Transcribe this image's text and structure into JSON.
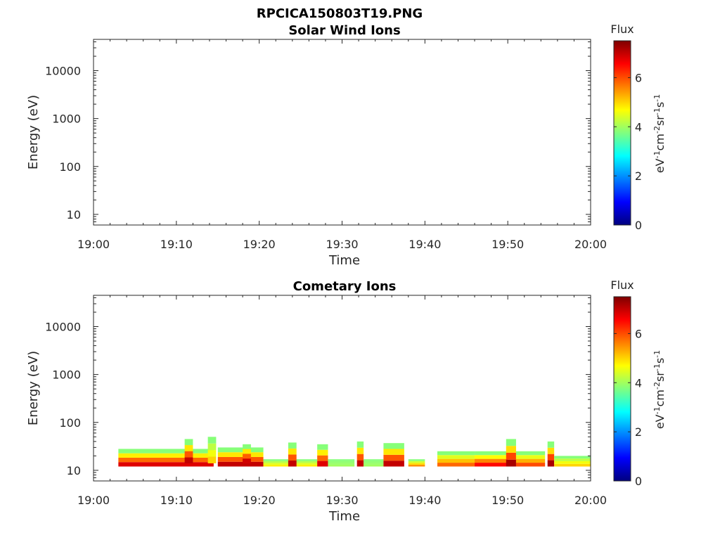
{
  "figure_title": "RPCICA150803T19.PNG",
  "chart_data": [
    {
      "type": "heatmap",
      "title": "Solar Wind Ions",
      "xlabel": "Time",
      "ylabel": "Energy (eV)",
      "y_scale": "log",
      "ylim": [
        6,
        45000
      ],
      "xlim": [
        "19:00",
        "20:00"
      ],
      "x_ticks": [
        "19:00",
        "19:10",
        "19:20",
        "19:30",
        "19:40",
        "19:50",
        "20:00"
      ],
      "y_ticks": [
        {
          "value": 10,
          "label": "10"
        },
        {
          "value": 100,
          "label": "100"
        },
        {
          "value": 1000,
          "label": "1000"
        },
        {
          "value": 10000,
          "label": "10000"
        }
      ],
      "colorbar": {
        "label": "Flux",
        "units": "eV-1cm-2sr-1s-1",
        "range": [
          0,
          7.5
        ],
        "ticks": [
          "0",
          "2",
          "4",
          "6"
        ],
        "colormap": "jet"
      },
      "grid": false,
      "bands": []
    },
    {
      "type": "heatmap",
      "title": "Cometary Ions",
      "xlabel": "Time",
      "ylabel": "Energy (eV)",
      "y_scale": "log",
      "ylim": [
        6,
        45000
      ],
      "xlim": [
        "19:00",
        "20:00"
      ],
      "x_ticks": [
        "19:00",
        "19:10",
        "19:20",
        "19:30",
        "19:40",
        "19:50",
        "20:00"
      ],
      "y_ticks": [
        {
          "value": 10,
          "label": "10"
        },
        {
          "value": 100,
          "label": "100"
        },
        {
          "value": 1000,
          "label": "1000"
        },
        {
          "value": 10000,
          "label": "10000"
        }
      ],
      "colorbar": {
        "label": "Flux",
        "units": "eV-1cm-2sr-1s-1",
        "range": [
          0,
          7.5
        ],
        "ticks": [
          "0",
          "2",
          "4",
          "6"
        ],
        "colormap": "jet"
      },
      "grid": false,
      "bands": [
        {
          "t_start": 3.0,
          "t_end": 14.5,
          "e_low": 12,
          "e_high": 28,
          "peak_flux": 6.8
        },
        {
          "t_start": 11.0,
          "t_end": 12.0,
          "e_low": 14,
          "e_high": 45,
          "peak_flux": 7.0
        },
        {
          "t_start": 13.8,
          "t_end": 14.8,
          "e_low": 14,
          "e_high": 50,
          "peak_flux": 5.0
        },
        {
          "t_start": 15.0,
          "t_end": 20.5,
          "e_low": 12,
          "e_high": 30,
          "peak_flux": 7.0
        },
        {
          "t_start": 18.0,
          "t_end": 19.0,
          "e_low": 14,
          "e_high": 35,
          "peak_flux": 6.9
        },
        {
          "t_start": 20.5,
          "t_end": 27.0,
          "e_low": 12,
          "e_high": 17,
          "peak_flux": 4.8
        },
        {
          "t_start": 23.5,
          "t_end": 24.5,
          "e_low": 12,
          "e_high": 38,
          "peak_flux": 7.0
        },
        {
          "t_start": 27.0,
          "t_end": 28.3,
          "e_low": 12,
          "e_high": 35,
          "peak_flux": 6.8
        },
        {
          "t_start": 28.3,
          "t_end": 31.5,
          "e_low": 12,
          "e_high": 17,
          "peak_flux": 4.0
        },
        {
          "t_start": 31.8,
          "t_end": 32.6,
          "e_low": 12,
          "e_high": 40,
          "peak_flux": 7.0
        },
        {
          "t_start": 32.6,
          "t_end": 35.0,
          "e_low": 12,
          "e_high": 17,
          "peak_flux": 4.0
        },
        {
          "t_start": 35.0,
          "t_end": 37.5,
          "e_low": 12,
          "e_high": 37,
          "peak_flux": 7.0
        },
        {
          "t_start": 38.0,
          "t_end": 40.0,
          "e_low": 12,
          "e_high": 17,
          "peak_flux": 5.5
        },
        {
          "t_start": 41.5,
          "t_end": 46.0,
          "e_low": 12,
          "e_high": 25,
          "peak_flux": 5.8
        },
        {
          "t_start": 46.0,
          "t_end": 50.0,
          "e_low": 12,
          "e_high": 25,
          "peak_flux": 6.5
        },
        {
          "t_start": 49.8,
          "t_end": 51.0,
          "e_low": 12,
          "e_high": 45,
          "peak_flux": 7.2
        },
        {
          "t_start": 51.0,
          "t_end": 54.5,
          "e_low": 12,
          "e_high": 25,
          "peak_flux": 6.0
        },
        {
          "t_start": 54.8,
          "t_end": 55.6,
          "e_low": 12,
          "e_high": 40,
          "peak_flux": 7.2
        },
        {
          "t_start": 55.6,
          "t_end": 60.0,
          "e_low": 12,
          "e_high": 20,
          "peak_flux": 5.0
        }
      ]
    }
  ]
}
